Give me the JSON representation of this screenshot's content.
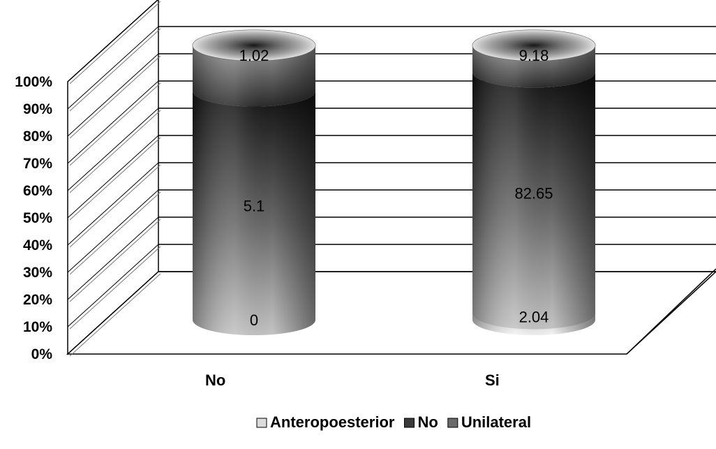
{
  "chart_data": {
    "type": "bar",
    "stacked": "percent",
    "three_d": true,
    "bar_shape": "cylinder",
    "categories": [
      "No",
      "Si"
    ],
    "series": [
      {
        "name": "Anteropoesterior",
        "values": [
          0,
          2.04
        ],
        "color": "#dcdcdc"
      },
      {
        "name": "No",
        "values": [
          5.1,
          82.65
        ],
        "color": "#3a3a3a"
      },
      {
        "name": "Unilateral",
        "values": [
          1.02,
          9.18
        ],
        "color": "#6a6a6a"
      }
    ],
    "data_labels": [
      [
        "0",
        "5.1",
        "1.02"
      ],
      [
        "2.04",
        "82.65",
        "9.18"
      ]
    ],
    "y_ticks": [
      "0%",
      "10%",
      "20%",
      "30%",
      "40%",
      "50%",
      "60%",
      "70%",
      "80%",
      "90%",
      "100%"
    ],
    "ylim": [
      0,
      100
    ],
    "grid": true,
    "legend_position": "bottom",
    "title": "",
    "xlabel": "",
    "ylabel": ""
  }
}
